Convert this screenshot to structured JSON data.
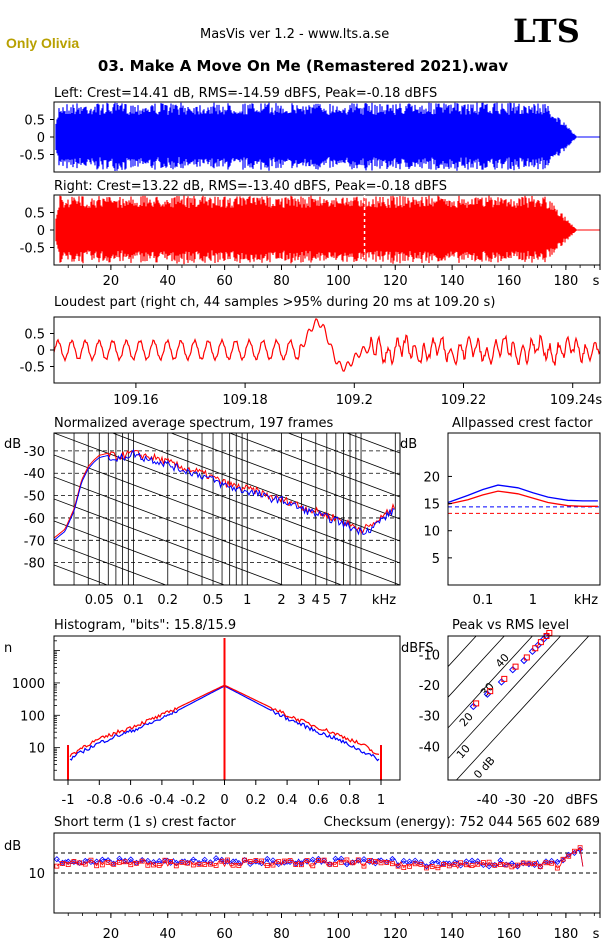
{
  "header": {
    "app_title": "MasVis ver 1.2 - www.lts.a.se",
    "logo": "LTS",
    "artist": "Only Olivia",
    "file_title": "03. Make A Move On Me (Remastered 2021).wav"
  },
  "colors": {
    "left": "#0000ff",
    "right": "#ff0000",
    "grid": "#000000"
  },
  "chart_data": [
    {
      "id": "left-waveform",
      "type": "area",
      "title": "Left: Crest=14.41 dB, RMS=-14.59 dBFS, Peak=-0.18 dBFS",
      "yticks": [
        "0.5",
        "0",
        "-0.5"
      ],
      "ylim": [
        -1,
        1
      ],
      "xlim": [
        0,
        192
      ],
      "x_unit": "s",
      "duration_s": 184,
      "envelope_peak": 0.98
    },
    {
      "id": "right-waveform",
      "type": "area",
      "title": "Right: Crest=13.22 dB, RMS=-13.40 dBFS, Peak=-0.18 dBFS",
      "yticks": [
        "0.5",
        "0",
        "-0.5"
      ],
      "ylim": [
        -1,
        1
      ],
      "xlim": [
        0,
        192
      ],
      "xticks": [
        "20",
        "40",
        "60",
        "80",
        "100",
        "120",
        "140",
        "160",
        "180",
        "s"
      ],
      "marker_s": 109.2
    },
    {
      "id": "loudest-part",
      "type": "line",
      "title": "Loudest part (right ch, 44 samples >95% during 20 ms at 109.20 s)",
      "yticks": [
        "0.5",
        "0",
        "-0.5"
      ],
      "ylim": [
        -1,
        1
      ],
      "xlim": [
        109.145,
        109.245
      ],
      "xticks": [
        "109.16",
        "109.18",
        "109.2",
        "109.22",
        "109.24s"
      ]
    },
    {
      "id": "average-spectrum",
      "type": "line",
      "title": "Normalized average spectrum, 197 frames",
      "ylabel": "dB",
      "yticks": [
        "-30",
        "-40",
        "-50",
        "-60",
        "-70",
        "-80"
      ],
      "xticks": [
        "0.05",
        "0.1",
        "0.2",
        "0.5",
        "1",
        "2",
        "3",
        "4",
        "5",
        "7",
        "kHz"
      ],
      "x_khz": [
        0.02,
        0.025,
        0.03,
        0.035,
        0.04,
        0.045,
        0.05,
        0.06,
        0.07,
        0.08,
        0.1,
        0.12,
        0.15,
        0.2,
        0.25,
        0.3,
        0.4,
        0.5,
        0.6,
        0.8,
        1,
        1.2,
        1.5,
        2,
        2.5,
        3,
        4,
        5,
        6,
        8,
        10,
        12,
        15,
        20
      ],
      "series": [
        {
          "color": "right",
          "values": [
            -69,
            -65,
            -56,
            -43,
            -37,
            -34,
            -32,
            -31,
            -33,
            -32,
            -31,
            -32,
            -33,
            -35,
            -37,
            -38,
            -40,
            -42,
            -44,
            -46,
            -47,
            -48,
            -50,
            -52,
            -53,
            -55,
            -57,
            -59,
            -60,
            -63,
            -65,
            -64,
            -60,
            -55
          ]
        },
        {
          "color": "left",
          "values": [
            -70,
            -66,
            -57,
            -44,
            -38,
            -35,
            -33,
            -32,
            -34,
            -33,
            -31,
            -33,
            -34,
            -36,
            -38,
            -39,
            -41,
            -43,
            -45,
            -47,
            -48,
            -49,
            -51,
            -52,
            -54,
            -56,
            -58,
            -60,
            -61,
            -64,
            -66,
            -65,
            -61,
            -56
          ]
        }
      ]
    },
    {
      "id": "allpassed-crest",
      "type": "line",
      "title": "Allpassed crest factor",
      "ylabel": "dB",
      "yticks": [
        "20",
        "15",
        "10",
        "5"
      ],
      "xticks": [
        "0.1",
        "1",
        "kHz"
      ],
      "x_khz": [
        0.02,
        0.05,
        0.1,
        0.2,
        0.5,
        1,
        2,
        5,
        10,
        20
      ],
      "series": [
        {
          "color": "left",
          "values": [
            15.2,
            16.5,
            17.6,
            18.4,
            17.9,
            17.0,
            16.2,
            15.6,
            15.5,
            15.5
          ]
        },
        {
          "color": "right",
          "values": [
            14.9,
            15.7,
            16.6,
            17.3,
            16.8,
            16.0,
            15.2,
            14.6,
            14.5,
            14.5
          ]
        }
      ],
      "reference": [
        {
          "color": "left",
          "value": 14.4
        },
        {
          "color": "right",
          "value": 13.2
        }
      ]
    },
    {
      "id": "histogram",
      "type": "line",
      "title": "Histogram, \"bits\": 15.8/15.9",
      "ylabel": "n",
      "yticks": [
        "1000",
        "100",
        "10"
      ],
      "xticks": [
        "-1",
        "-0.8",
        "-0.6",
        "-0.4",
        "-0.2",
        "0",
        "0.2",
        "0.4",
        "0.6",
        "0.8",
        "1"
      ],
      "x": [
        -1,
        -0.9,
        -0.8,
        -0.7,
        -0.6,
        -0.5,
        -0.4,
        -0.3,
        -0.2,
        -0.1,
        0,
        0.1,
        0.2,
        0.3,
        0.4,
        0.5,
        0.6,
        0.7,
        0.8,
        0.9,
        1
      ],
      "series": [
        {
          "color": "left",
          "values": [
            4,
            8,
            14,
            22,
            32,
            50,
            80,
            140,
            250,
            450,
            800,
            450,
            250,
            140,
            80,
            50,
            30,
            20,
            12,
            7,
            4
          ]
        },
        {
          "color": "right",
          "values": [
            5,
            11,
            18,
            28,
            42,
            65,
            100,
            170,
            290,
            500,
            850,
            500,
            290,
            170,
            100,
            65,
            42,
            28,
            18,
            11,
            5
          ]
        }
      ]
    },
    {
      "id": "peak-vs-rms",
      "type": "scatter",
      "title": "Peak vs RMS level",
      "ylabel": "dBFS",
      "xlabel": "dBFS",
      "yticks": [
        "-10",
        "-20",
        "-30",
        "-40"
      ],
      "xticks": [
        "-40",
        "-30",
        "-20"
      ],
      "diag_labels": [
        "40",
        "30",
        "20",
        "10",
        "0 dB"
      ],
      "series": [
        {
          "color": "left",
          "points": [
            [
              -45,
              -27
            ],
            [
              -40,
              -23
            ],
            [
              -35,
              -19
            ],
            [
              -31,
              -15
            ],
            [
              -27,
              -12
            ],
            [
              -24,
              -9
            ],
            [
              -22,
              -7
            ],
            [
              -20,
              -5
            ],
            [
              -19,
              -4
            ]
          ]
        },
        {
          "color": "right",
          "points": [
            [
              -44,
              -26
            ],
            [
              -39,
              -22
            ],
            [
              -34,
              -18
            ],
            [
              -30,
              -14
            ],
            [
              -26,
              -11
            ],
            [
              -23,
              -8
            ],
            [
              -21,
              -6
            ],
            [
              -19,
              -4
            ],
            [
              -18,
              -3
            ]
          ]
        }
      ]
    },
    {
      "id": "short-term-crest",
      "type": "scatter",
      "title": "Short term (1 s) crest factor",
      "checksum": "Checksum (energy):  752 044 565 602 689",
      "ylabel": "dB",
      "yticks": [
        "10"
      ],
      "xticks": [
        "20",
        "40",
        "60",
        "80",
        "100",
        "120",
        "140",
        "160",
        "180",
        "s"
      ],
      "xlim": [
        0,
        192
      ],
      "ylim": [
        0,
        20
      ]
    }
  ]
}
